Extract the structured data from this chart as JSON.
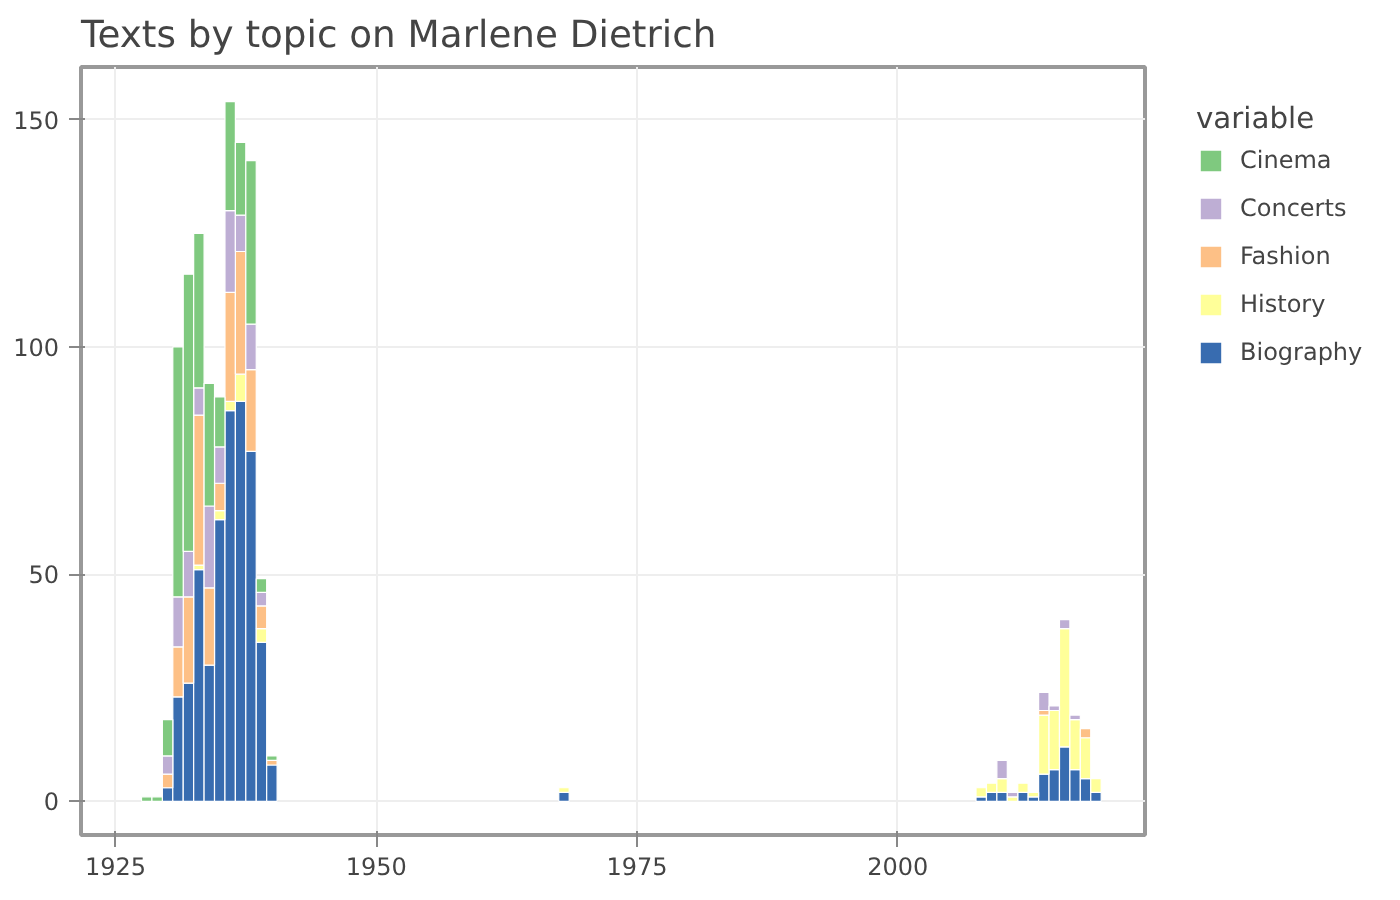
{
  "chart_data": {
    "type": "bar",
    "stacked": true,
    "title": "Texts by topic on Marlene Dietrich",
    "legend_title": "variable",
    "x": [
      1928,
      1929,
      1930,
      1931,
      1932,
      1933,
      1934,
      1935,
      1936,
      1937,
      1938,
      1939,
      1940,
      1968,
      2008,
      2009,
      2010,
      2011,
      2012,
      2013,
      2014,
      2015,
      2016,
      2017,
      2018,
      2019
    ],
    "series": [
      {
        "name": "Biography",
        "color": "#386cb0",
        "values": [
          null,
          null,
          3,
          23,
          26,
          51,
          30,
          62,
          86,
          88,
          77,
          35,
          8,
          2,
          1,
          2,
          2,
          null,
          2,
          1,
          6,
          7,
          12,
          7,
          5,
          2
        ]
      },
      {
        "name": "History",
        "color": "#ffff99",
        "values": [
          null,
          null,
          null,
          null,
          null,
          1,
          null,
          2,
          2,
          6,
          null,
          3,
          null,
          1,
          2,
          2,
          3,
          1,
          2,
          1,
          13,
          13,
          26,
          11,
          9,
          3
        ]
      },
      {
        "name": "Fashion",
        "color": "#fdc086",
        "values": [
          null,
          null,
          3,
          11,
          19,
          33,
          17,
          6,
          24,
          27,
          18,
          5,
          1,
          null,
          null,
          null,
          null,
          null,
          null,
          null,
          1,
          null,
          null,
          null,
          2,
          null
        ]
      },
      {
        "name": "Concerts",
        "color": "#beaed4",
        "values": [
          null,
          null,
          4,
          11,
          10,
          6,
          18,
          8,
          18,
          8,
          10,
          3,
          null,
          null,
          null,
          null,
          4,
          1,
          null,
          null,
          4,
          1,
          2,
          1,
          null,
          null
        ]
      },
      {
        "name": "Cinema",
        "color": "#7fc97f",
        "values": [
          1,
          1,
          8,
          55,
          61,
          34,
          27,
          11,
          24,
          16,
          36,
          3,
          1,
          null,
          null,
          null,
          null,
          null,
          null,
          null,
          null,
          null,
          null,
          null,
          null,
          null
        ]
      }
    ],
    "xlim": [
      1921.7,
      2023.7
    ],
    "xticks": [
      1925,
      1950,
      1975,
      2000
    ],
    "ylim": [
      -7.4,
      161.6
    ],
    "yticks": [
      0,
      50,
      100,
      150
    ],
    "grid": true,
    "legend": "right"
  }
}
